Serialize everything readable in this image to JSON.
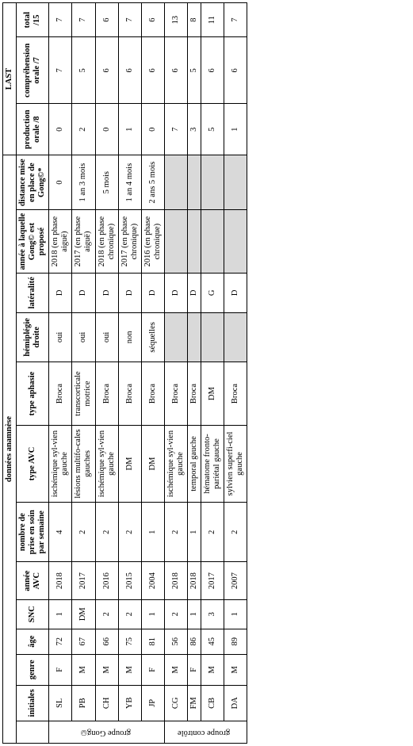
{
  "section_headers": {
    "anamnese": "données anamnèse",
    "last": "LAST"
  },
  "col_headers": {
    "initiales": "initiales",
    "genre": "genre",
    "age": "âge",
    "snc": "SNC",
    "annee_avc": "année AVC",
    "n_prise": "nombre de prise en soin par semaine",
    "type_avc": "type AVC",
    "type_aphasie": "type aphasie",
    "hemiplegie": "hémiplégie droite",
    "lateralite": "latéralité",
    "gong_annee": "année à laquelle Gong© est proposé",
    "distance_gong": "distance mise en place de Gong©*",
    "prod_orale": "production orale /8",
    "comp_orale": "compréhension orale /7",
    "total": "total /15"
  },
  "group_labels": {
    "gong": "groupe Gong©",
    "controle": "groupe contrôle"
  },
  "rows_gong": [
    {
      "initiales": "SL",
      "genre": "F",
      "age": "72",
      "snc": "1",
      "annee_avc": "2018",
      "n_prise": "4",
      "type_avc": "ischémique syl-vien gauche",
      "type_aphasie": "Broca",
      "hemiplegie": "oui",
      "lateralite": "D",
      "gong_annee": "2018 (en phase aiguë)",
      "distance_gong": "0",
      "prod_orale": "0",
      "comp_orale": "7",
      "total": "7"
    },
    {
      "initiales": "PB",
      "genre": "M",
      "age": "67",
      "snc": "DM",
      "annee_avc": "2017",
      "n_prise": "2",
      "type_avc": "lésions multifo-cales gauches",
      "type_aphasie": "transcorticale motrice",
      "hemiplegie": "oui",
      "lateralite": "D",
      "gong_annee": "2017 (en phase aiguë)",
      "distance_gong": "1 an 3 mois",
      "prod_orale": "2",
      "comp_orale": "5",
      "total": "7"
    },
    {
      "initiales": "CH",
      "genre": "M",
      "age": "66",
      "snc": "2",
      "annee_avc": "2016",
      "n_prise": "2",
      "type_avc": "ischémique syl-vien gauche",
      "type_aphasie": "Broca",
      "hemiplegie": "oui",
      "lateralite": "D",
      "gong_annee": "2018 (en phase chronique)",
      "distance_gong": "5 mois",
      "prod_orale": "0",
      "comp_orale": "6",
      "total": "6"
    },
    {
      "initiales": "YB",
      "genre": "M",
      "age": "75",
      "snc": "2",
      "annee_avc": "2015",
      "n_prise": "2",
      "type_avc": "DM",
      "type_aphasie": "Broca",
      "hemiplegie": "non",
      "lateralite": "D",
      "gong_annee": "2017 (en phase chronique)",
      "distance_gong": "1 an 4 mois",
      "prod_orale": "1",
      "comp_orale": "6",
      "total": "7"
    },
    {
      "initiales": "JP",
      "genre": "F",
      "age": "81",
      "snc": "1",
      "annee_avc": "2004",
      "n_prise": "1",
      "type_avc": "DM",
      "type_aphasie": "Broca",
      "hemiplegie": "séquelles",
      "lateralite": "D",
      "gong_annee": "2016 (en phase chronique)",
      "distance_gong": "2 ans 5 mois",
      "prod_orale": "0",
      "comp_orale": "6",
      "total": "6"
    }
  ],
  "rows_controle": [
    {
      "initiales": "CG",
      "genre": "M",
      "age": "56",
      "snc": "2",
      "annee_avc": "2018",
      "n_prise": "2",
      "type_avc": "ischémique syl-vien gauche",
      "type_aphasie": "Broca",
      "hemiplegie": "",
      "lateralite": "D",
      "gong_annee": "",
      "distance_gong": "",
      "prod_orale": "7",
      "comp_orale": "6",
      "total": "13"
    },
    {
      "initiales": "FM",
      "genre": "F",
      "age": "86",
      "snc": "1",
      "annee_avc": "2018",
      "n_prise": "1",
      "type_avc": "temporal gauche",
      "type_aphasie": "Broca",
      "hemiplegie": "",
      "lateralite": "D",
      "gong_annee": "",
      "distance_gong": "",
      "prod_orale": "3",
      "comp_orale": "5",
      "total": "8"
    },
    {
      "initiales": "CB",
      "genre": "M",
      "age": "45",
      "snc": "3",
      "annee_avc": "2017",
      "n_prise": "2",
      "type_avc": "hématome fronto-pariétal gauche",
      "type_aphasie": "DM",
      "hemiplegie": "",
      "lateralite": "G",
      "gong_annee": "",
      "distance_gong": "",
      "prod_orale": "5",
      "comp_orale": "6",
      "total": "11"
    },
    {
      "initiales": "DA",
      "genre": "M",
      "age": "89",
      "snc": "1",
      "annee_avc": "2007",
      "n_prise": "2",
      "type_avc": "sylvien superfi-ciel gauche",
      "type_aphasie": "Broca",
      "hemiplegie": "",
      "lateralite": "D",
      "gong_annee": "",
      "distance_gong": "",
      "prod_orale": "1",
      "comp_orale": "6",
      "total": "7"
    }
  ],
  "style": {
    "background_color": "#ffffff",
    "border_color": "#000000",
    "shaded_color": "#d9d9d9",
    "font_family": "Times New Roman",
    "font_size_pt": 8
  }
}
